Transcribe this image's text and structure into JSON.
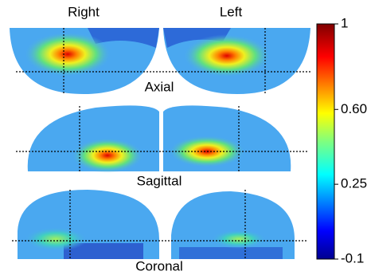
{
  "labels": {
    "right": "Right",
    "left": "Left",
    "axial": "Axial",
    "sagittal": "Sagittal",
    "coronal": "Coronal"
  },
  "colorbar": {
    "lim": [
      -0.1,
      1
    ],
    "ticks": [
      1,
      {
        "value": 0.6,
        "label": "0.60"
      },
      0.25,
      -0.1
    ]
  }
}
